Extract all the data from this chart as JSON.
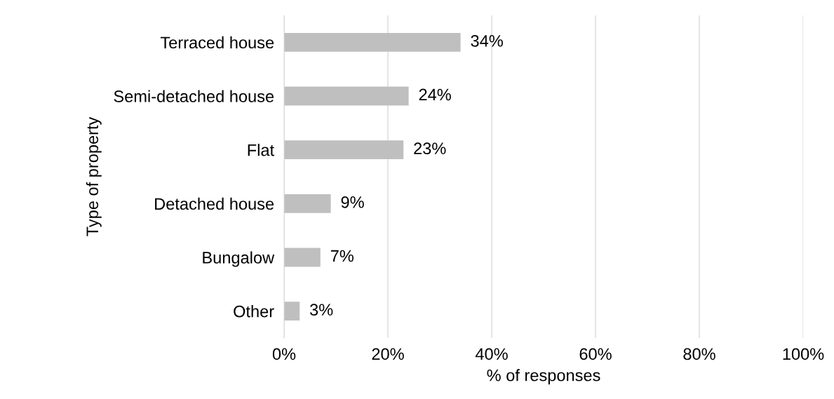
{
  "chart_data": {
    "type": "bar",
    "orientation": "horizontal",
    "xlabel": "% of responses",
    "ylabel": "Type of property",
    "categories": [
      "Terraced house",
      "Semi-detached house",
      "Flat",
      "Detached house",
      "Bungalow",
      "Other"
    ],
    "values": [
      34,
      24,
      23,
      9,
      7,
      3
    ],
    "color": "#bfbfbf",
    "value_labels": [
      "34%",
      "24%",
      "23%",
      "9%",
      "7%",
      "3%"
    ],
    "xlim": [
      0,
      100
    ],
    "xticks": [
      {
        "value": 0,
        "label": "0%"
      },
      {
        "value": 20,
        "label": "20%"
      },
      {
        "value": 40,
        "label": "40%"
      },
      {
        "value": 60,
        "label": "60%"
      },
      {
        "value": 80,
        "label": "80%"
      },
      {
        "value": 100,
        "label": "100%"
      }
    ],
    "grid": "x",
    "legend": false
  }
}
